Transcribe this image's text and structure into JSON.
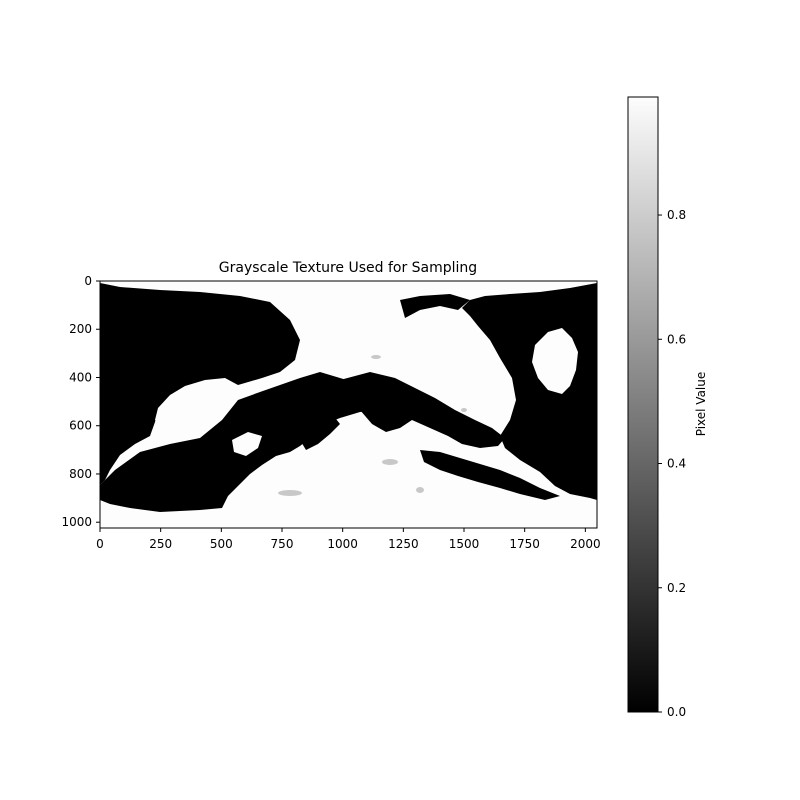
{
  "chart_data": {
    "type": "heatmap",
    "title": "Grayscale Texture Used for Sampling",
    "colormap": "gray",
    "image": {
      "width": 2048,
      "height": 1024,
      "description_values": "binary-ish map: ocean/dark regions = 0.0, land/light regions = ~0.99, with faint gray features"
    },
    "x_axis": {
      "lim": [
        0,
        2048
      ],
      "ticks": [
        0,
        250,
        500,
        750,
        1000,
        1250,
        1500,
        1750,
        2000
      ],
      "tick_labels": [
        "0",
        "250",
        "500",
        "750",
        "1000",
        "1250",
        "1500",
        "1750",
        "2000"
      ]
    },
    "y_axis": {
      "lim": [
        0,
        1024
      ],
      "inverted": true,
      "ticks": [
        0,
        200,
        400,
        600,
        800,
        1000
      ],
      "tick_labels": [
        "0",
        "200",
        "400",
        "600",
        "800",
        "1000"
      ]
    },
    "colorbar": {
      "label": "Pixel Value",
      "range": [
        0.0,
        0.99
      ],
      "ticks": [
        0.0,
        0.2,
        0.4,
        0.6,
        0.8
      ],
      "tick_labels": [
        "0.0",
        "0.2",
        "0.4",
        "0.6",
        "0.8"
      ]
    }
  },
  "colors": {
    "dark": "#000000",
    "light": "#fdfdfd",
    "gray_feature": "#c8c8c8"
  }
}
